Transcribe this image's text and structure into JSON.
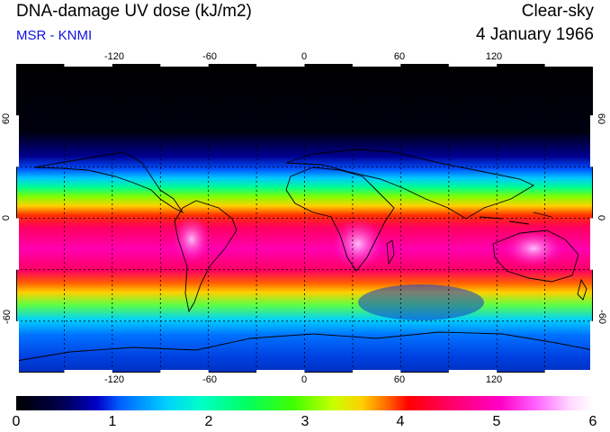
{
  "header": {
    "title": "DNA-damage UV dose (kJ/m2)",
    "subtitle": "MSR - KNMI",
    "sky_condition": "Clear-sky",
    "date": "4 January 1966"
  },
  "map": {
    "longitude_labels_top": [
      "-120",
      "-60",
      "0",
      "60",
      "120"
    ],
    "longitude_labels_bottom": [
      "-120",
      "-60",
      "0",
      "60",
      "120"
    ],
    "latitude_labels_left": [
      "60",
      "0",
      "-60"
    ],
    "latitude_labels_right": [
      "60",
      "0",
      "-60"
    ],
    "longitude_range": [
      -180,
      180
    ],
    "latitude_range": [
      -90,
      90
    ],
    "gridlines": "dotted, every 30 degrees"
  },
  "colorbar": {
    "tick_labels": [
      "0",
      "1",
      "2",
      "3",
      "4",
      "5",
      "6"
    ],
    "range": [
      0,
      6
    ],
    "colors": [
      "#000000",
      "#0000c8",
      "#00d0ff",
      "#40ff00",
      "#ff0000",
      "#ff00c8",
      "#ffffff"
    ]
  }
}
